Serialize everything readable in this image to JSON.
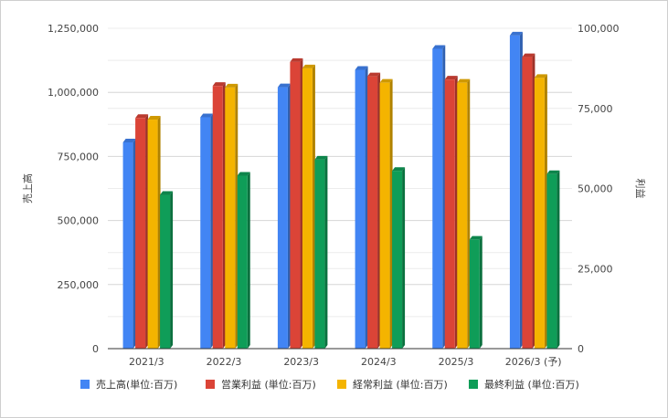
{
  "chart_data": {
    "type": "bar",
    "three_d": true,
    "categories": [
      "2021/3",
      "2022/3",
      "2023/3",
      "2024/3",
      "2025/3",
      "2026/3 (予)"
    ],
    "series": [
      {
        "name": "売上高(単位:百万)",
        "axis": "left",
        "color": "#4285f4",
        "values": [
          805000,
          903000,
          1020000,
          1088000,
          1170000,
          1222000
        ]
      },
      {
        "name": "営業利益 (単位:百万)",
        "axis": "right",
        "color": "#db4437",
        "values": [
          72000,
          82000,
          89500,
          85000,
          84000,
          91000
        ]
      },
      {
        "name": "経常利益 (単位:百万)",
        "axis": "right",
        "color": "#f4b400",
        "values": [
          71500,
          81500,
          87500,
          83000,
          83000,
          84500
        ]
      },
      {
        "name": "最終利益 (単位:百万)",
        "axis": "right",
        "color": "#0f9d58",
        "values": [
          48000,
          54000,
          59000,
          55500,
          34000,
          54500
        ]
      }
    ],
    "ylabel": "売上高",
    "y2label": "利益",
    "ylim": [
      0,
      1250000
    ],
    "y2lim": [
      0,
      100000
    ],
    "yticks": [
      "0",
      "250,000",
      "500,000",
      "750,000",
      "1,000,000",
      "1,250,000"
    ],
    "y2ticks": [
      "0",
      "25,000",
      "50,000",
      "75,000",
      "100,000"
    ],
    "grid": true,
    "legend_position": "bottom"
  }
}
